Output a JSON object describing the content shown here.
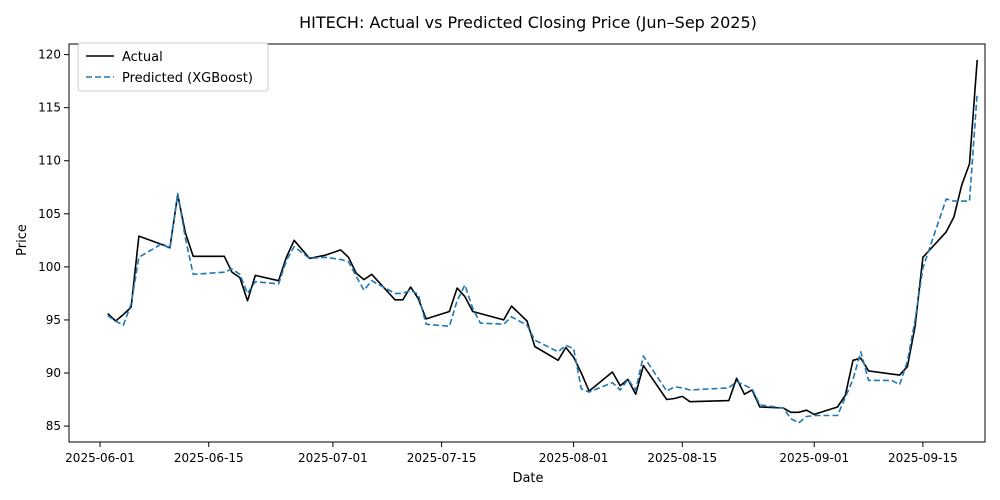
{
  "chart_data": {
    "type": "line",
    "title": "HITECH: Actual vs Predicted Closing Price (Jun–Sep 2025)",
    "xlabel": "Date",
    "ylabel": "Price",
    "xlim": [
      "2025-05-28",
      "2025-09-23"
    ],
    "ylim": [
      83.5,
      121.0
    ],
    "x_ticks": [
      "2025-06-01",
      "2025-06-15",
      "2025-07-01",
      "2025-07-15",
      "2025-08-01",
      "2025-08-15",
      "2025-09-01",
      "2025-09-15"
    ],
    "y_ticks": [
      85,
      90,
      95,
      100,
      105,
      110,
      115,
      120
    ],
    "grid": false,
    "legend": {
      "position": "top-left"
    },
    "series": [
      {
        "name": "Actual",
        "color": "#000000",
        "style": "solid",
        "points": [
          [
            "2025-06-02",
            95.6
          ],
          [
            "2025-06-03",
            94.9
          ],
          [
            "2025-06-04",
            95.5
          ],
          [
            "2025-06-05",
            96.2
          ],
          [
            "2025-06-06",
            102.9
          ],
          [
            "2025-06-09",
            102.1
          ],
          [
            "2025-06-10",
            101.8
          ],
          [
            "2025-06-11",
            106.8
          ],
          [
            "2025-06-12",
            103.2
          ],
          [
            "2025-06-13",
            101.0
          ],
          [
            "2025-06-17",
            101.0
          ],
          [
            "2025-06-18",
            99.5
          ],
          [
            "2025-06-19",
            99.0
          ],
          [
            "2025-06-20",
            96.8
          ],
          [
            "2025-06-21",
            99.2
          ],
          [
            "2025-06-24",
            98.7
          ],
          [
            "2025-06-25",
            100.9
          ],
          [
            "2025-06-26",
            102.5
          ],
          [
            "2025-06-28",
            100.8
          ],
          [
            "2025-06-30",
            101.1
          ],
          [
            "2025-07-02",
            101.6
          ],
          [
            "2025-07-03",
            100.9
          ],
          [
            "2025-07-04",
            99.4
          ],
          [
            "2025-07-05",
            98.8
          ],
          [
            "2025-07-06",
            99.3
          ],
          [
            "2025-07-09",
            96.9
          ],
          [
            "2025-07-10",
            96.9
          ],
          [
            "2025-07-11",
            98.1
          ],
          [
            "2025-07-12",
            97.0
          ],
          [
            "2025-07-13",
            95.1
          ],
          [
            "2025-07-16",
            95.8
          ],
          [
            "2025-07-17",
            98.0
          ],
          [
            "2025-07-18",
            97.2
          ],
          [
            "2025-07-19",
            95.8
          ],
          [
            "2025-07-23",
            95.0
          ],
          [
            "2025-07-24",
            96.3
          ],
          [
            "2025-07-26",
            94.9
          ],
          [
            "2025-07-27",
            92.5
          ],
          [
            "2025-07-30",
            91.2
          ],
          [
            "2025-07-31",
            92.4
          ],
          [
            "2025-08-01",
            91.5
          ],
          [
            "2025-08-02",
            90.0
          ],
          [
            "2025-08-03",
            88.3
          ],
          [
            "2025-08-06",
            90.1
          ],
          [
            "2025-08-07",
            88.8
          ],
          [
            "2025-08-08",
            89.4
          ],
          [
            "2025-08-09",
            88.0
          ],
          [
            "2025-08-10",
            90.7
          ],
          [
            "2025-08-13",
            87.5
          ],
          [
            "2025-08-14",
            87.6
          ],
          [
            "2025-08-15",
            87.8
          ],
          [
            "2025-08-16",
            87.3
          ],
          [
            "2025-08-21",
            87.4
          ],
          [
            "2025-08-22",
            89.5
          ],
          [
            "2025-08-23",
            88.0
          ],
          [
            "2025-08-24",
            88.4
          ],
          [
            "2025-08-25",
            86.8
          ],
          [
            "2025-08-28",
            86.7
          ],
          [
            "2025-08-29",
            86.3
          ],
          [
            "2025-08-30",
            86.3
          ],
          [
            "2025-08-31",
            86.5
          ],
          [
            "2025-09-01",
            86.1
          ],
          [
            "2025-09-04",
            86.8
          ],
          [
            "2025-09-05",
            87.9
          ],
          [
            "2025-09-06",
            91.2
          ],
          [
            "2025-09-07",
            91.4
          ],
          [
            "2025-09-08",
            90.2
          ],
          [
            "2025-09-12",
            89.8
          ],
          [
            "2025-09-13",
            90.6
          ],
          [
            "2025-09-14",
            94.4
          ],
          [
            "2025-09-15",
            100.9
          ],
          [
            "2025-09-18",
            103.3
          ],
          [
            "2025-09-19",
            104.7
          ],
          [
            "2025-09-20",
            107.7
          ],
          [
            "2025-09-21",
            109.7
          ],
          [
            "2025-09-22",
            119.5
          ]
        ]
      },
      {
        "name": "Predicted (XGBoost)",
        "color": "#1f77b4",
        "style": "dashed",
        "points": [
          [
            "2025-06-02",
            95.4
          ],
          [
            "2025-06-03",
            94.9
          ],
          [
            "2025-06-04",
            94.5
          ],
          [
            "2025-06-05",
            96.5
          ],
          [
            "2025-06-06",
            100.9
          ],
          [
            "2025-06-09",
            102.2
          ],
          [
            "2025-06-10",
            101.7
          ],
          [
            "2025-06-11",
            106.9
          ],
          [
            "2025-06-12",
            102.7
          ],
          [
            "2025-06-13",
            99.3
          ],
          [
            "2025-06-17",
            99.5
          ],
          [
            "2025-06-18",
            99.8
          ],
          [
            "2025-06-19",
            99.3
          ],
          [
            "2025-06-20",
            97.5
          ],
          [
            "2025-06-21",
            98.6
          ],
          [
            "2025-06-24",
            98.4
          ],
          [
            "2025-06-25",
            100.6
          ],
          [
            "2025-06-26",
            101.9
          ],
          [
            "2025-06-28",
            100.8
          ],
          [
            "2025-06-30",
            100.9
          ],
          [
            "2025-07-02",
            100.7
          ],
          [
            "2025-07-03",
            100.5
          ],
          [
            "2025-07-04",
            99.1
          ],
          [
            "2025-07-05",
            97.8
          ],
          [
            "2025-07-06",
            98.7
          ],
          [
            "2025-07-09",
            97.5
          ],
          [
            "2025-07-10",
            97.5
          ],
          [
            "2025-07-11",
            97.8
          ],
          [
            "2025-07-12",
            97.4
          ],
          [
            "2025-07-13",
            94.6
          ],
          [
            "2025-07-16",
            94.4
          ],
          [
            "2025-07-17",
            96.8
          ],
          [
            "2025-07-18",
            98.3
          ],
          [
            "2025-07-19",
            96.1
          ],
          [
            "2025-07-20",
            94.7
          ],
          [
            "2025-07-23",
            94.6
          ],
          [
            "2025-07-24",
            95.3
          ],
          [
            "2025-07-26",
            94.5
          ],
          [
            "2025-07-27",
            93.1
          ],
          [
            "2025-07-30",
            92.0
          ],
          [
            "2025-07-31",
            92.6
          ],
          [
            "2025-08-01",
            92.3
          ],
          [
            "2025-08-02",
            88.5
          ],
          [
            "2025-08-03",
            88.2
          ],
          [
            "2025-08-06",
            89.1
          ],
          [
            "2025-08-07",
            88.4
          ],
          [
            "2025-08-08",
            89.4
          ],
          [
            "2025-08-09",
            88.4
          ],
          [
            "2025-08-10",
            91.6
          ],
          [
            "2025-08-13",
            88.3
          ],
          [
            "2025-08-14",
            88.7
          ],
          [
            "2025-08-15",
            88.6
          ],
          [
            "2025-08-16",
            88.4
          ],
          [
            "2025-08-21",
            88.6
          ],
          [
            "2025-08-22",
            89.2
          ],
          [
            "2025-08-24",
            88.5
          ],
          [
            "2025-08-25",
            87.0
          ],
          [
            "2025-08-28",
            86.7
          ],
          [
            "2025-08-29",
            85.7
          ],
          [
            "2025-08-30",
            85.3
          ],
          [
            "2025-08-31",
            85.9
          ],
          [
            "2025-09-01",
            86.0
          ],
          [
            "2025-09-04",
            86.0
          ],
          [
            "2025-09-05",
            87.7
          ],
          [
            "2025-09-06",
            89.4
          ],
          [
            "2025-09-07",
            92.0
          ],
          [
            "2025-09-08",
            89.3
          ],
          [
            "2025-09-11",
            89.3
          ],
          [
            "2025-09-12",
            88.9
          ],
          [
            "2025-09-13",
            91.1
          ],
          [
            "2025-09-14",
            95.0
          ],
          [
            "2025-09-15",
            99.9
          ],
          [
            "2025-09-18",
            106.4
          ],
          [
            "2025-09-19",
            106.2
          ],
          [
            "2025-09-21",
            106.2
          ],
          [
            "2025-09-22",
            116.4
          ]
        ]
      }
    ]
  }
}
